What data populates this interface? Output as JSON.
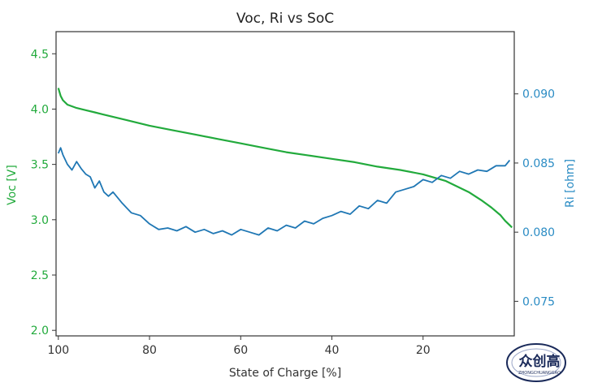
{
  "chart_data": {
    "type": "line",
    "title": "Voc, Ri vs SoC",
    "xlabel": "State of Charge [%]",
    "ylabel_left": "Voc [V]",
    "ylabel_right": "Ri [ohm]",
    "xlim": [
      100.5,
      0
    ],
    "ylim_left": [
      1.95,
      4.7
    ],
    "ylim_right": [
      0.0725,
      0.0945
    ],
    "x_ticks": [
      100,
      80,
      60,
      40,
      20
    ],
    "x_tick_labels": [
      "100",
      "80",
      "60",
      "40",
      "20"
    ],
    "y_left_ticks": [
      2.0,
      2.5,
      3.0,
      3.5,
      4.0,
      4.5
    ],
    "y_left_tick_labels": [
      "2.0",
      "2.5",
      "3.0",
      "3.5",
      "4.0",
      "4.5"
    ],
    "y_right_ticks": [
      0.075,
      0.08,
      0.085,
      0.09
    ],
    "y_right_tick_labels": [
      "0.075",
      "0.080",
      "0.085",
      "0.090"
    ],
    "grid": false,
    "colors": {
      "voc": "#22aa3c",
      "ri": "#1f77b4"
    },
    "series": [
      {
        "name": "Voc",
        "axis": "left",
        "x": [
          100,
          99.5,
          99,
          98,
          96,
          94,
          92,
          90,
          85,
          80,
          75,
          70,
          65,
          60,
          55,
          50,
          45,
          40,
          35,
          30,
          25,
          20,
          15,
          10,
          7,
          5,
          3,
          2,
          1,
          0.5
        ],
        "y": [
          4.19,
          4.12,
          4.08,
          4.04,
          4.01,
          3.99,
          3.97,
          3.95,
          3.9,
          3.85,
          3.81,
          3.77,
          3.73,
          3.69,
          3.65,
          3.61,
          3.58,
          3.55,
          3.52,
          3.48,
          3.45,
          3.41,
          3.35,
          3.25,
          3.17,
          3.11,
          3.04,
          2.99,
          2.95,
          2.93
        ]
      },
      {
        "name": "Ri",
        "axis": "right",
        "x": [
          100,
          99.5,
          99,
          98,
          97,
          96,
          95,
          94,
          93,
          92,
          91,
          90,
          89,
          88,
          86,
          84,
          82,
          80,
          78,
          76,
          74,
          72,
          70,
          68,
          66,
          64,
          62,
          60,
          58,
          56,
          54,
          52,
          50,
          48,
          46,
          44,
          42,
          40,
          38,
          36,
          34,
          32,
          30,
          28,
          26,
          24,
          22,
          20,
          18,
          16,
          14,
          12,
          10,
          8,
          6,
          4,
          2,
          1
        ],
        "y": [
          0.0857,
          0.0861,
          0.0856,
          0.0849,
          0.0845,
          0.0851,
          0.0846,
          0.0842,
          0.084,
          0.0832,
          0.0837,
          0.0829,
          0.0826,
          0.0829,
          0.0821,
          0.0814,
          0.0812,
          0.0806,
          0.0802,
          0.0803,
          0.0801,
          0.0804,
          0.08,
          0.0802,
          0.0799,
          0.0801,
          0.0798,
          0.0802,
          0.08,
          0.0798,
          0.0803,
          0.0801,
          0.0805,
          0.0803,
          0.0808,
          0.0806,
          0.081,
          0.0812,
          0.0815,
          0.0813,
          0.0819,
          0.0817,
          0.0823,
          0.0821,
          0.0829,
          0.0831,
          0.0833,
          0.0838,
          0.0836,
          0.0841,
          0.0839,
          0.0844,
          0.0842,
          0.0845,
          0.0844,
          0.0848,
          0.0848,
          0.0852
        ]
      }
    ]
  },
  "watermark": {
    "text": "众创高",
    "sub": "ZHONGCHUANGGAO"
  }
}
